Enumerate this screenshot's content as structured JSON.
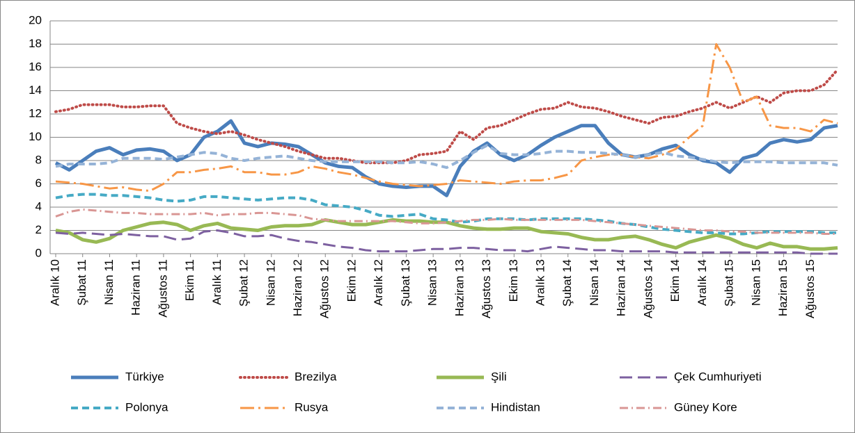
{
  "chart_data": {
    "type": "line",
    "categories": [
      "Aralık 10",
      null,
      "Şubat 11",
      null,
      "Nisan 11",
      null,
      "Haziran 11",
      null,
      "Ağustos 11",
      null,
      "Ekim 11",
      null,
      "Aralık 11",
      null,
      "Şubat 12",
      null,
      "Nisan 12",
      null,
      "Haziran 12",
      null,
      "Ağustos 12",
      null,
      "Ekim 12",
      null,
      "Aralık 12",
      null,
      "Şubat 13",
      null,
      "Nisan 13",
      null,
      "Haziran 13",
      null,
      "Ağustos 13",
      null,
      "Ekim 13",
      null,
      "Aralık 13",
      null,
      "Şubat 14",
      null,
      "Nisan 14",
      null,
      "Haziran 14",
      null,
      "Ağustos 14",
      null,
      "Ekim 14",
      null,
      "Aralık 14",
      null,
      "Şubat 15",
      null,
      "Nisan 15",
      null,
      "Haziran 15",
      null,
      "Ağustos 15",
      null,
      null
    ],
    "ylim": [
      0,
      20
    ],
    "yticks": [
      0,
      2,
      4,
      6,
      8,
      10,
      12,
      14,
      16,
      18,
      20
    ],
    "grid": true,
    "legend": "bottom",
    "series": [
      {
        "name": "Türkiye",
        "color": "#4a7ebb",
        "dash": "solid",
        "width": 5,
        "values": [
          7.8,
          7.2,
          8.0,
          8.8,
          9.1,
          8.5,
          8.9,
          9.0,
          8.8,
          8.0,
          8.5,
          10.0,
          10.5,
          11.4,
          9.5,
          9.2,
          9.5,
          9.4,
          9.2,
          8.5,
          7.8,
          7.5,
          7.4,
          6.6,
          6.0,
          5.8,
          5.7,
          5.8,
          5.8,
          5.0,
          7.5,
          8.8,
          9.5,
          8.5,
          8.0,
          8.5,
          9.3,
          10.0,
          10.5,
          11.0,
          11.0,
          9.5,
          8.5,
          8.3,
          8.5,
          9.0,
          9.3,
          8.5,
          8.0,
          7.8,
          7.0,
          8.2,
          8.5,
          9.5,
          9.8,
          9.6,
          9.8,
          10.8,
          11.0
        ]
      },
      {
        "name": "Brezilya",
        "color": "#be4b48",
        "dash": "dot",
        "width": 4,
        "values": [
          12.2,
          12.4,
          12.8,
          12.8,
          12.8,
          12.6,
          12.6,
          12.7,
          12.7,
          11.2,
          10.8,
          10.5,
          10.3,
          10.5,
          10.2,
          9.8,
          9.5,
          9.2,
          8.8,
          8.5,
          8.2,
          8.2,
          8.0,
          7.8,
          7.8,
          7.8,
          8.0,
          8.5,
          8.6,
          8.8,
          10.5,
          9.8,
          10.8,
          11.0,
          11.5,
          12.0,
          12.4,
          12.5,
          13.0,
          12.6,
          12.5,
          12.2,
          11.8,
          11.5,
          11.2,
          11.7,
          11.8,
          12.2,
          12.5,
          13.0,
          12.5,
          13.0,
          13.5,
          13.0,
          13.8,
          14.0,
          14.0,
          14.5,
          15.8
        ]
      },
      {
        "name": "Şili",
        "color": "#98b954",
        "dash": "solid",
        "width": 5,
        "values": [
          2.0,
          1.8,
          1.2,
          1.0,
          1.3,
          2.0,
          2.3,
          2.6,
          2.7,
          2.5,
          2.0,
          2.4,
          2.6,
          2.2,
          2.1,
          2.0,
          2.3,
          2.4,
          2.4,
          2.5,
          2.9,
          2.7,
          2.5,
          2.5,
          2.7,
          2.9,
          2.8,
          2.8,
          2.7,
          2.7,
          2.4,
          2.2,
          2.1,
          2.1,
          2.2,
          2.2,
          1.9,
          1.8,
          1.7,
          1.4,
          1.2,
          1.2,
          1.4,
          1.5,
          1.2,
          0.8,
          0.5,
          1.0,
          1.3,
          1.6,
          1.3,
          0.8,
          0.5,
          0.9,
          0.6,
          0.6,
          0.4,
          0.4,
          0.5
        ]
      },
      {
        "name": "Çek Cumhuriyeti",
        "color": "#7d60a0",
        "dash": "longdash",
        "width": 3,
        "values": [
          1.8,
          1.7,
          1.8,
          1.7,
          1.6,
          1.7,
          1.6,
          1.5,
          1.5,
          1.2,
          1.3,
          1.9,
          2.0,
          1.8,
          1.5,
          1.5,
          1.6,
          1.3,
          1.1,
          1.0,
          0.8,
          0.6,
          0.5,
          0.3,
          0.2,
          0.2,
          0.2,
          0.3,
          0.4,
          0.4,
          0.5,
          0.5,
          0.4,
          0.3,
          0.3,
          0.2,
          0.4,
          0.6,
          0.5,
          0.4,
          0.3,
          0.3,
          0.2,
          0.2,
          0.2,
          0.2,
          0.1,
          0.1,
          0.1,
          0.1,
          0.1,
          0.1,
          0.1,
          0.1,
          0.1,
          0.1,
          0,
          0,
          0
        ]
      },
      {
        "name": "Polonya",
        "color": "#46aac5",
        "dash": "dash",
        "width": 4,
        "values": [
          4.8,
          5.0,
          5.1,
          5.1,
          5.0,
          5.0,
          4.9,
          4.8,
          4.6,
          4.5,
          4.6,
          4.9,
          4.9,
          4.8,
          4.7,
          4.6,
          4.7,
          4.8,
          4.8,
          4.6,
          4.2,
          4.1,
          4.0,
          3.7,
          3.3,
          3.2,
          3.3,
          3.4,
          3.0,
          2.9,
          2.7,
          2.8,
          3.0,
          3.0,
          3.0,
          2.9,
          3.0,
          3.0,
          3.0,
          3.0,
          2.9,
          2.8,
          2.6,
          2.5,
          2.3,
          2.1,
          2.0,
          1.9,
          1.8,
          1.8,
          1.7,
          1.7,
          1.8,
          1.9,
          1.9,
          1.9,
          1.9,
          1.8,
          1.8
        ]
      },
      {
        "name": "Rusya",
        "color": "#f79646",
        "dash": "longdashdot",
        "width": 3,
        "values": [
          6.2,
          6.1,
          6.0,
          5.8,
          5.6,
          5.7,
          5.5,
          5.4,
          6.0,
          7.0,
          7.0,
          7.2,
          7.3,
          7.5,
          7.0,
          7.0,
          6.8,
          6.8,
          7.0,
          7.5,
          7.3,
          7.0,
          6.8,
          6.5,
          6.2,
          6.0,
          5.9,
          5.8,
          5.9,
          6.0,
          6.3,
          6.2,
          6.1,
          6.0,
          6.2,
          6.3,
          6.3,
          6.5,
          6.8,
          8.0,
          8.3,
          8.5,
          8.5,
          8.3,
          8.2,
          8.5,
          9.0,
          10.0,
          11.0,
          18.0,
          16.0,
          13.0,
          13.5,
          11.0,
          10.8,
          10.8,
          10.5,
          11.5,
          11.2
        ]
      },
      {
        "name": "Hindistan",
        "color": "#95b3d7",
        "dash": "dash",
        "width": 4,
        "values": [
          7.5,
          7.7,
          7.7,
          7.7,
          7.8,
          8.2,
          8.2,
          8.2,
          8.1,
          8.3,
          8.5,
          8.7,
          8.6,
          8.2,
          8.0,
          8.2,
          8.3,
          8.4,
          8.2,
          8.0,
          7.9,
          7.9,
          7.9,
          7.9,
          7.9,
          7.8,
          7.8,
          7.9,
          7.7,
          7.4,
          8.0,
          8.7,
          9.3,
          8.6,
          8.5,
          8.5,
          8.6,
          8.8,
          8.8,
          8.7,
          8.7,
          8.6,
          8.5,
          8.3,
          8.5,
          8.7,
          8.4,
          8.3,
          8.1,
          7.9,
          7.8,
          7.9,
          7.9,
          7.9,
          7.8,
          7.8,
          7.8,
          7.8,
          7.6
        ]
      },
      {
        "name": "Güney Kore",
        "color": "#d99694",
        "dash": "dashdot",
        "width": 3,
        "values": [
          3.2,
          3.6,
          3.8,
          3.7,
          3.6,
          3.5,
          3.5,
          3.4,
          3.4,
          3.4,
          3.4,
          3.5,
          3.3,
          3.4,
          3.4,
          3.5,
          3.5,
          3.4,
          3.3,
          3.0,
          2.9,
          2.8,
          2.8,
          2.8,
          2.8,
          2.8,
          2.7,
          2.6,
          2.6,
          2.7,
          2.8,
          2.9,
          2.9,
          3.0,
          2.9,
          2.9,
          2.9,
          2.9,
          2.9,
          2.9,
          2.8,
          2.7,
          2.6,
          2.5,
          2.4,
          2.3,
          2.2,
          2.1,
          2.0,
          2.0,
          1.9,
          1.9,
          1.8,
          1.8,
          1.8,
          1.8,
          1.8,
          1.7,
          1.7
        ]
      }
    ]
  }
}
